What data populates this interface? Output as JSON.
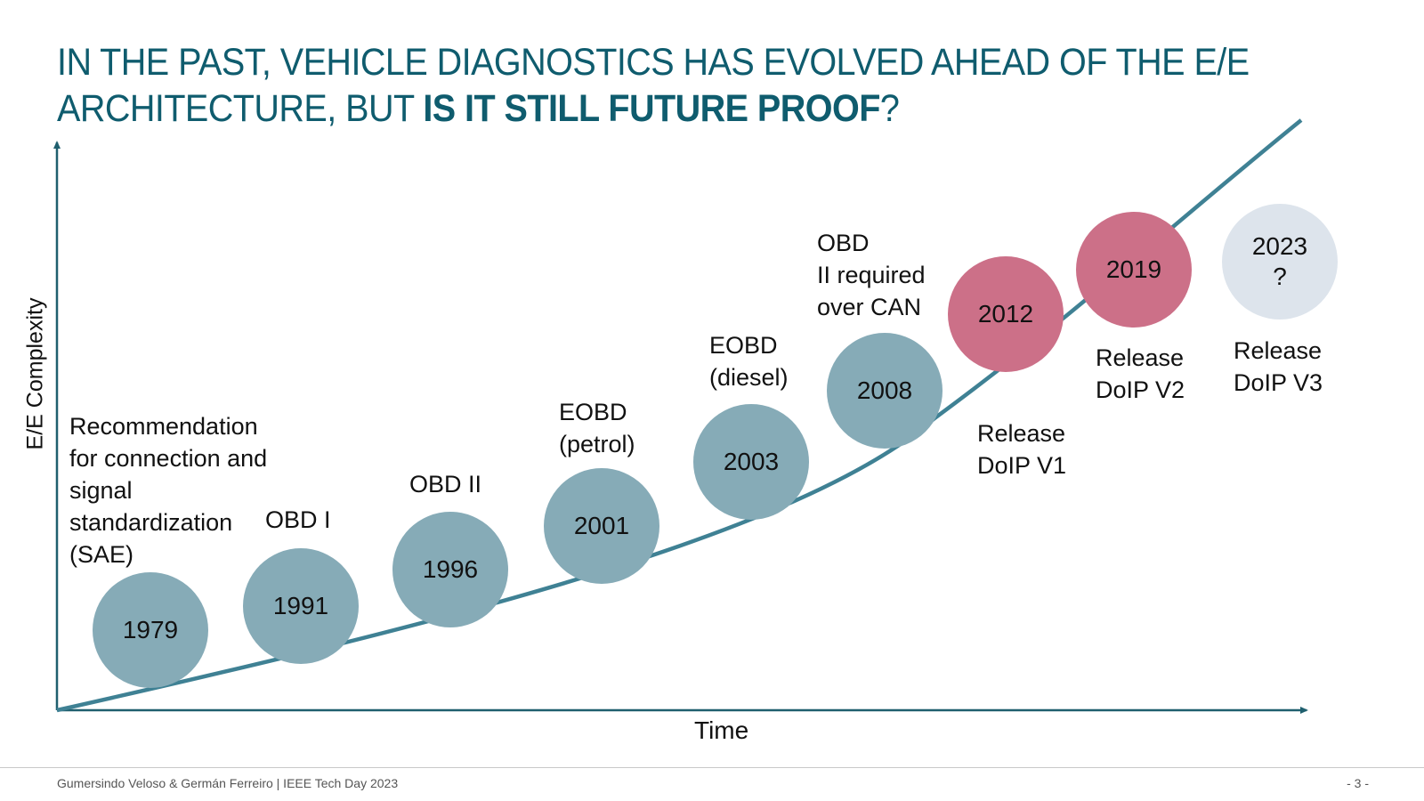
{
  "title": {
    "line1": "IN THE PAST, VEHICLE DIAGNOSTICS HAS EVOLVED AHEAD OF THE E/E",
    "line2_normal": "ARCHITECTURE, BUT ",
    "line2_bold": "IS IT STILL FUTURE PROOF",
    "line2_end": "?"
  },
  "axes": {
    "y_label": "E/E Complexity",
    "x_label": "Time"
  },
  "colors": {
    "title": "#0f5c6e",
    "axis": "#1f5f6e",
    "curve": "#3f8194",
    "past": "#86abb7",
    "recent": "#cc7088",
    "future": "#dde4ec"
  },
  "milestones": [
    {
      "year": "1979",
      "label": "Recommendation\nfor connection and\nsignal\nstandardization\n(SAE)",
      "status": "past"
    },
    {
      "year": "1991",
      "label": "OBD I",
      "status": "past"
    },
    {
      "year": "1996",
      "label": "OBD II",
      "status": "past"
    },
    {
      "year": "2001",
      "label": "EOBD\n(petrol)",
      "status": "past"
    },
    {
      "year": "2003",
      "label": "EOBD\n(diesel)",
      "status": "past"
    },
    {
      "year": "2008",
      "label": "OBD\nII  required\nover CAN",
      "status": "past"
    },
    {
      "year": "2012",
      "label": "Release\nDoIP V1",
      "status": "recent"
    },
    {
      "year": "2019",
      "label": "Release\nDoIP V2",
      "status": "recent"
    },
    {
      "year": "2023\n?",
      "label": "Release\nDoIP V3",
      "status": "future"
    }
  ],
  "footer": {
    "left": "Gumersindo Veloso & Germán Ferreiro | IEEE Tech Day 2023",
    "right": "- 3 -"
  }
}
